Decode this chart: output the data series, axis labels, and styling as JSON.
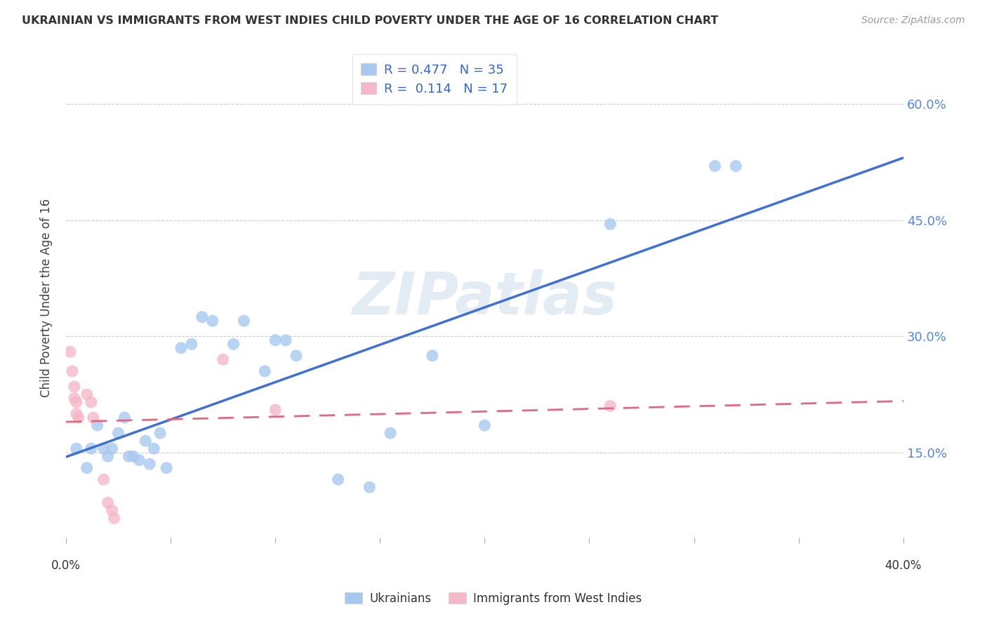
{
  "title": "UKRAINIAN VS IMMIGRANTS FROM WEST INDIES CHILD POVERTY UNDER THE AGE OF 16 CORRELATION CHART",
  "source": "Source: ZipAtlas.com",
  "ylabel": "Child Poverty Under the Age of 16",
  "ytick_values": [
    0.15,
    0.3,
    0.45,
    0.6
  ],
  "xlim": [
    0.0,
    0.4
  ],
  "ylim": [
    0.04,
    0.66
  ],
  "color_ukrainian": "#A8C8F0",
  "color_westindies": "#F5B8C8",
  "color_line_ukrainian": "#4070D0",
  "color_line_westindies": "#E06880",
  "ukrainian_x": [
    0.005,
    0.01,
    0.012,
    0.015,
    0.018,
    0.02,
    0.022,
    0.025,
    0.028,
    0.03,
    0.032,
    0.035,
    0.038,
    0.04,
    0.042,
    0.045,
    0.048,
    0.055,
    0.06,
    0.065,
    0.07,
    0.08,
    0.085,
    0.095,
    0.1,
    0.105,
    0.11,
    0.13,
    0.145,
    0.155,
    0.175,
    0.2,
    0.26,
    0.31,
    0.32
  ],
  "ukrainian_y": [
    0.155,
    0.13,
    0.155,
    0.185,
    0.155,
    0.145,
    0.155,
    0.175,
    0.195,
    0.145,
    0.145,
    0.14,
    0.165,
    0.135,
    0.155,
    0.175,
    0.13,
    0.285,
    0.29,
    0.325,
    0.32,
    0.29,
    0.32,
    0.255,
    0.295,
    0.295,
    0.275,
    0.115,
    0.105,
    0.175,
    0.275,
    0.185,
    0.445,
    0.52,
    0.52
  ],
  "westindies_x": [
    0.002,
    0.003,
    0.004,
    0.004,
    0.005,
    0.005,
    0.006,
    0.01,
    0.012,
    0.013,
    0.018,
    0.02,
    0.022,
    0.023,
    0.075,
    0.1,
    0.26
  ],
  "westindies_y": [
    0.28,
    0.255,
    0.235,
    0.22,
    0.215,
    0.2,
    0.195,
    0.225,
    0.215,
    0.195,
    0.115,
    0.085,
    0.075,
    0.065,
    0.27,
    0.205,
    0.21
  ],
  "background_color": "#FFFFFF",
  "grid_color": "#CCCCCC",
  "watermark": "ZIPatlas",
  "watermark_color": "#C8D8E8"
}
